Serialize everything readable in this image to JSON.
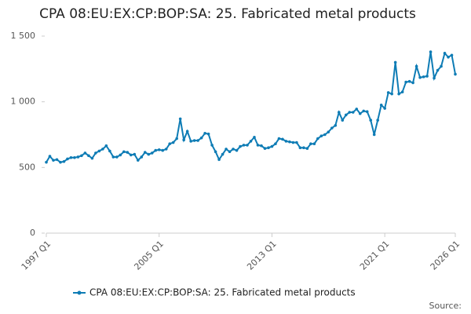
{
  "chart_data": {
    "type": "line",
    "title": "CPA 08:EU:EX:CP:BOP:SA: 25. Fabricated metal products",
    "source": "Source:",
    "categories": [
      "1997 Q1",
      null,
      null,
      null,
      null,
      null,
      null,
      null,
      null,
      null,
      null,
      null,
      null,
      null,
      null,
      null,
      null,
      null,
      null,
      null,
      null,
      null,
      null,
      null,
      null,
      null,
      null,
      null,
      null,
      null,
      null,
      null,
      "2005 Q1",
      null,
      null,
      null,
      null,
      null,
      null,
      null,
      null,
      null,
      null,
      null,
      null,
      null,
      null,
      null,
      null,
      null,
      null,
      null,
      null,
      null,
      null,
      null,
      null,
      null,
      null,
      null,
      null,
      null,
      null,
      null,
      "2013 Q1",
      null,
      null,
      null,
      null,
      null,
      null,
      null,
      null,
      null,
      null,
      null,
      null,
      null,
      null,
      null,
      null,
      null,
      null,
      null,
      null,
      null,
      null,
      null,
      null,
      null,
      null,
      null,
      null,
      null,
      null,
      null,
      "2021 Q1",
      null,
      null,
      null,
      null,
      null,
      null,
      null,
      null,
      null,
      null,
      null,
      null,
      null,
      null,
      null,
      null,
      null,
      null,
      null,
      "2026 Q1"
    ],
    "series": [
      {
        "name": "CPA 08:EU:EX:CP:BOP:SA: 25. Fabricated metal products",
        "color": "#0e7cb5",
        "values": [
          540,
          585,
          555,
          560,
          540,
          545,
          565,
          575,
          575,
          580,
          590,
          610,
          590,
          570,
          610,
          625,
          640,
          665,
          625,
          580,
          580,
          595,
          620,
          615,
          595,
          600,
          555,
          580,
          615,
          600,
          610,
          630,
          635,
          630,
          640,
          680,
          690,
          720,
          870,
          710,
          775,
          700,
          705,
          705,
          725,
          760,
          755,
          670,
          620,
          560,
          600,
          640,
          620,
          640,
          630,
          660,
          670,
          670,
          700,
          730,
          670,
          665,
          645,
          650,
          660,
          680,
          720,
          715,
          700,
          695,
          690,
          690,
          650,
          650,
          645,
          680,
          680,
          720,
          740,
          750,
          770,
          800,
          820,
          920,
          860,
          900,
          920,
          920,
          945,
          910,
          930,
          925,
          860,
          750,
          860,
          975,
          950,
          1070,
          1060,
          1300,
          1060,
          1075,
          1150,
          1155,
          1145,
          1270,
          1185,
          1190,
          1195,
          1380,
          1180,
          1240,
          1270,
          1370,
          1340,
          1355,
          1210
        ]
      }
    ],
    "ylim": [
      0,
      1500
    ],
    "yticks": [
      0,
      500,
      {
        "value": 1000,
        "label": "1 000"
      },
      {
        "value": 1500,
        "label": "1 500"
      }
    ],
    "grid": false,
    "legend": "bottom"
  }
}
